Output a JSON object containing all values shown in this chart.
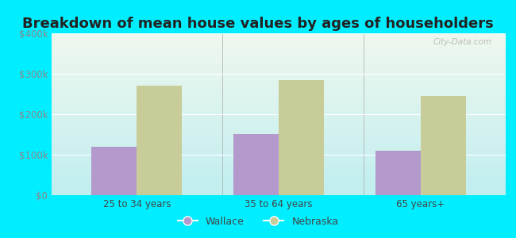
{
  "title": "Breakdown of mean house values by ages of householders",
  "categories": [
    "25 to 34 years",
    "35 to 64 years",
    "65 years+"
  ],
  "wallace_values": [
    120000,
    150000,
    110000
  ],
  "nebraska_values": [
    270000,
    285000,
    245000
  ],
  "wallace_color": "#b399cc",
  "nebraska_color": "#c8cc99",
  "ylim": [
    0,
    400000
  ],
  "yticks": [
    0,
    100000,
    200000,
    300000,
    400000
  ],
  "ytick_labels": [
    "$0",
    "$100k",
    "$200k",
    "$300k",
    "$400k"
  ],
  "background_outer": "#00eeff",
  "grad_top": "#f0f8ee",
  "grad_bottom": "#c0eef0",
  "bar_width": 0.32,
  "title_fontsize": 13,
  "legend_labels": [
    "Wallace",
    "Nebraska"
  ],
  "watermark": "City-Data.com",
  "tick_color": "#888888",
  "label_color": "#444444"
}
